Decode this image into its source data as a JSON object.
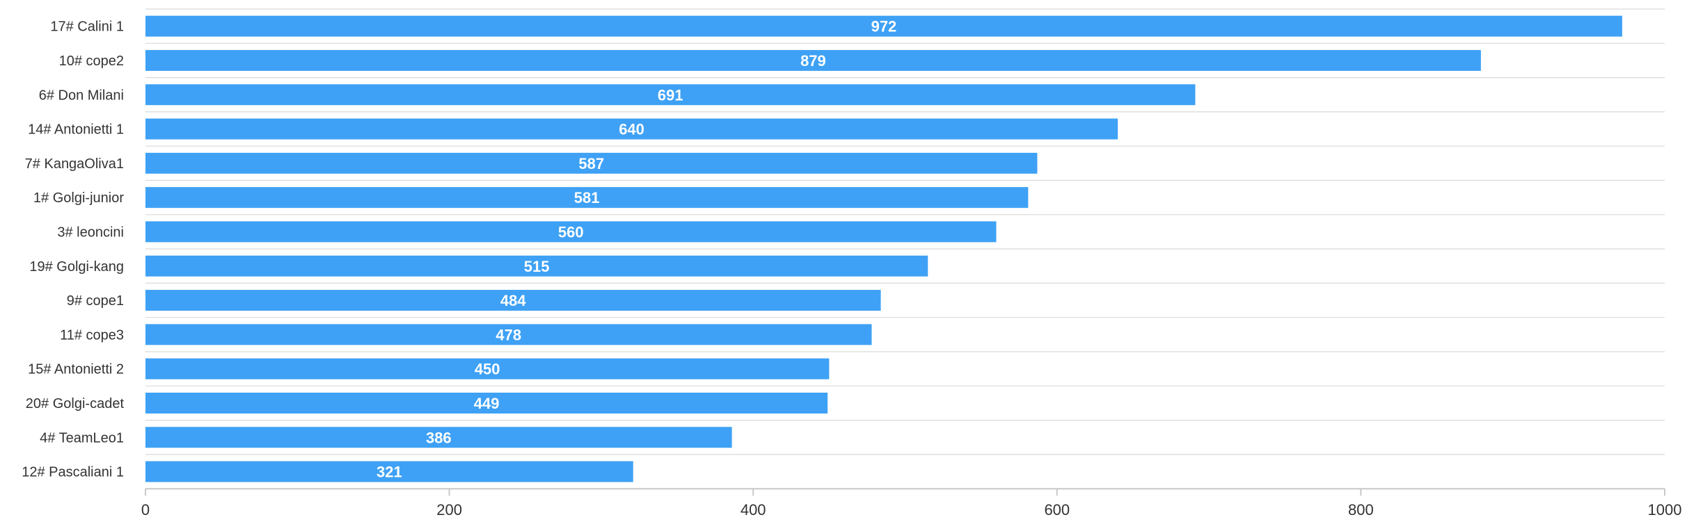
{
  "chart_data": {
    "type": "bar",
    "orientation": "horizontal",
    "categories": [
      "17# Calini 1",
      "10# cope2",
      "6# Don Milani",
      "14# Antonietti 1",
      "7# KangaOliva1",
      "1# Golgi-junior",
      "3# leoncini",
      "19# Golgi-kang",
      "9# cope1",
      "11# cope3",
      "15# Antonietti 2",
      "20# Golgi-cadet",
      "4# TeamLeo1",
      "12# Pascaliani 1"
    ],
    "values": [
      972,
      879,
      691,
      640,
      587,
      581,
      560,
      515,
      484,
      478,
      450,
      449,
      386,
      321
    ],
    "xlim": [
      0,
      1000
    ],
    "xticks": [
      0,
      200,
      400,
      600,
      800,
      1000
    ],
    "title": "",
    "xlabel": "",
    "ylabel": "",
    "grid": "horizontal separators",
    "bar_color": "#3ea1f5",
    "label_color": "#ffffff"
  }
}
